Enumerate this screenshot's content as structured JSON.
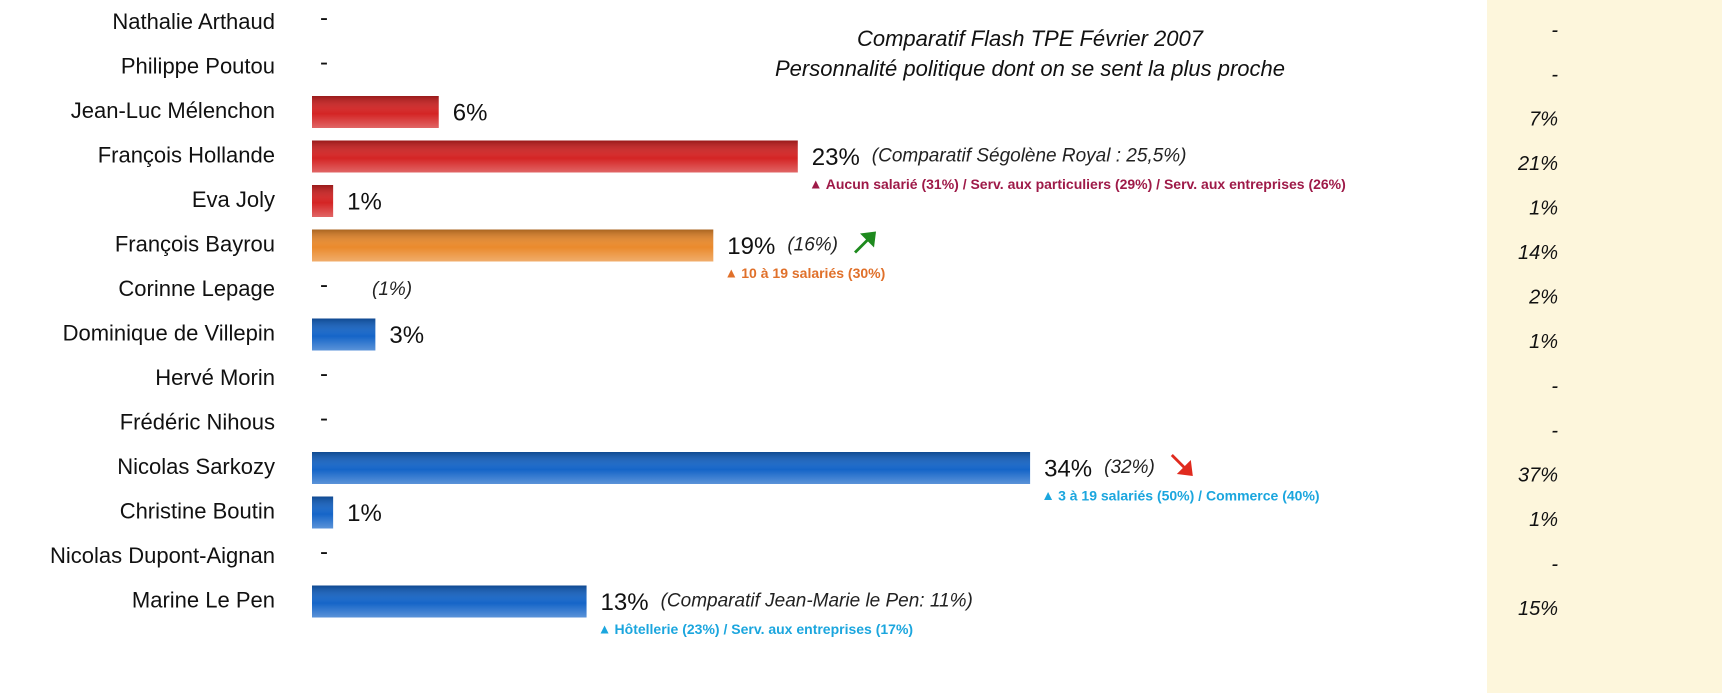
{
  "chart_data": {
    "type": "bar",
    "orientation": "horizontal",
    "title": [
      "Comparatif Flash TPE Février 2007",
      "Personnalité politique dont on se sent la plus proche"
    ],
    "categories": [
      "Nathalie Arthaud",
      "Philippe Poutou",
      "Jean-Luc Mélenchon",
      "François Hollande",
      "Eva Joly",
      "François Bayrou",
      "Corinne Lepage",
      "Dominique de Villepin",
      "Hervé Morin",
      "Frédéric Nihous",
      "Nicolas Sarkozy",
      "Christine Boutin",
      "Nicolas Dupont-Aignan",
      "Marine Le Pen"
    ],
    "values": [
      null,
      null,
      6,
      23,
      1,
      19,
      null,
      3,
      null,
      null,
      34,
      1,
      null,
      13
    ],
    "value_labels": [
      "-",
      "-",
      "6%",
      "23%",
      "1%",
      "19%",
      "-",
      "3%",
      "-",
      "-",
      "34%",
      "1%",
      "-",
      "13%"
    ],
    "colors": [
      "#d42424",
      "#d42424",
      "#d42424",
      "#d42424",
      "#d42424",
      "#ea8a2c",
      "#ea8a2c",
      "#1565c8",
      "#1565c8",
      "#1565c8",
      "#1565c8",
      "#1565c8",
      "#1565c8",
      "#1565c8"
    ],
    "comparisons": [
      null,
      null,
      null,
      "(Comparatif Ségolène Royal :  25,5%)",
      null,
      "(16%)",
      "(1%)",
      null,
      null,
      null,
      "(32%)",
      null,
      null,
      "(Comparatif  Jean-Marie le Pen: 11%)"
    ],
    "trend": [
      null,
      null,
      null,
      null,
      null,
      "up",
      null,
      null,
      null,
      null,
      "down",
      null,
      null,
      null
    ],
    "notes": [
      null,
      null,
      null,
      "Aucun salarié (31%) / Serv. aux particuliers (29%) / Serv. aux entreprises (26%)",
      null,
      "10 à 19 salariés (30%)",
      null,
      null,
      null,
      null,
      "3 à 19 salariés (50%) / Commerce (40%)",
      null,
      null,
      "Hôtellerie (23%) / Serv. aux entreprises (17%)"
    ],
    "note_colors": [
      null,
      null,
      null,
      "#9e1a48",
      null,
      "#e0702a",
      null,
      null,
      null,
      null,
      "#1ba6de",
      null,
      null,
      "#1ba6de"
    ],
    "right_column": {
      "values": [
        null,
        null,
        7,
        21,
        1,
        14,
        2,
        1,
        null,
        null,
        37,
        1,
        null,
        15
      ],
      "value_labels": [
        "-",
        "-",
        "7%",
        "21%",
        "1%",
        "14%",
        "2%",
        "1%",
        "-",
        "-",
        "37%",
        "1%",
        "-",
        "15%"
      ]
    }
  }
}
